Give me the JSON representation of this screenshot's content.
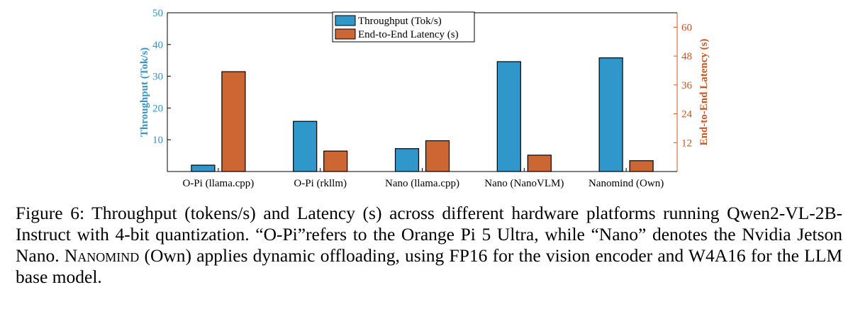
{
  "chart_data": {
    "type": "bar",
    "categories": [
      "O-Pi (llama.cpp)",
      "O-Pi (rkllm)",
      "Nano (llama.cpp)",
      "Nano (NanoVLM)",
      "Nanomind (Own)"
    ],
    "series": [
      {
        "name": "Throughput (Tok/s)",
        "axis": "left",
        "color": "#2f97c9",
        "values": [
          2.0,
          15.8,
          7.2,
          34.6,
          35.8
        ]
      },
      {
        "name": "End-to-End Latency (s)",
        "axis": "right",
        "color": "#cc6633",
        "values": [
          41.5,
          8.5,
          12.8,
          6.8,
          4.5
        ]
      }
    ],
    "left_axis": {
      "label": "Throughput (Tok/s)",
      "ylim": [
        0,
        50
      ],
      "ticks": [
        10,
        20,
        30,
        40,
        50
      ],
      "color": "#2f97c9"
    },
    "right_axis": {
      "label": "End-to-End Latency (s)",
      "ylim": [
        0,
        66
      ],
      "ticks": [
        12,
        24,
        36,
        48,
        60
      ],
      "color": "#cc5522"
    },
    "legend_position": "top-center",
    "grid": false
  },
  "caption": {
    "prefix": "Figure 6: Throughput (tokens/s) and Latency (s) across different hardware platforms running Qwen2-VL-2B-Instruct with 4-bit quantization. “O-Pi”refers to the Orange Pi 5 Ultra, while “Nano” denotes the Nvidia Jetson Nano. ",
    "name": "Nanomind",
    "suffix": " (Own) applies dynamic offloading, using FP16 for the vision encoder and W4A16 for the LLM base model."
  }
}
